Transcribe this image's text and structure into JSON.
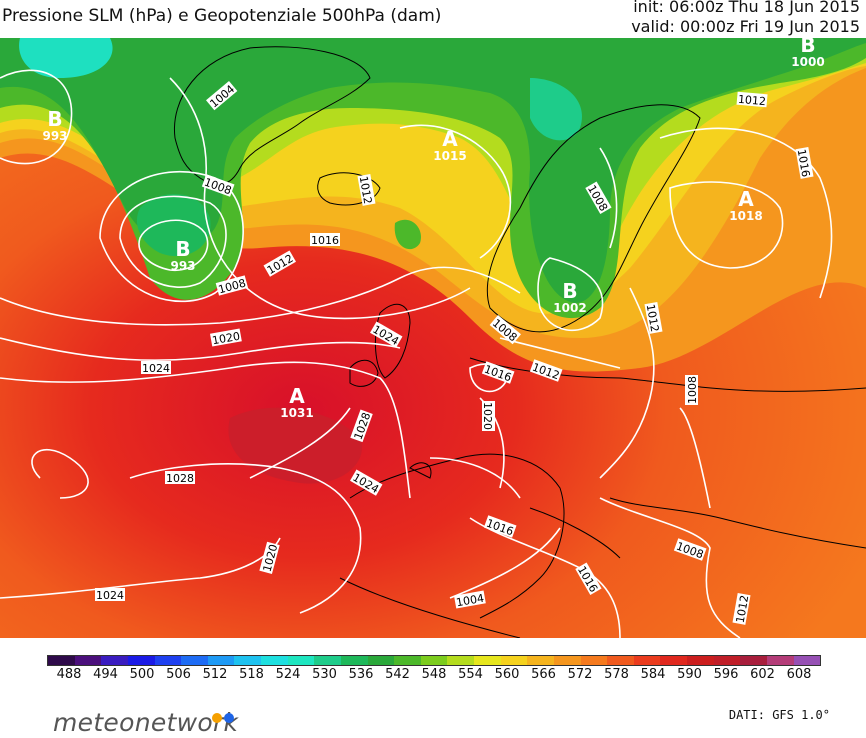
{
  "header": {
    "title": "Pressione SLM (hPa) e Geopotenziale 500hPa (dam)",
    "init": "init: 06:00z Thu 18 Jun 2015",
    "valid": "valid: 00:00z Fri 19 Jun 2015"
  },
  "centers": [
    {
      "letter": "B",
      "value": "993",
      "lon_lat": [
        -40,
        59
      ]
    },
    {
      "letter": "B",
      "value": "993",
      "lon_lat": [
        -30,
        57
      ]
    },
    {
      "letter": "A",
      "value": "1015",
      "lon_lat": [
        -5,
        63
      ]
    },
    {
      "letter": "B",
      "value": "1002",
      "lon_lat": [
        19,
        60
      ]
    },
    {
      "letter": "A",
      "value": "1018",
      "lon_lat": [
        38,
        60
      ]
    },
    {
      "letter": "A",
      "value": "1031",
      "lon_lat": [
        -27,
        41
      ]
    },
    {
      "letter": "B",
      "value": "1000",
      "lon_lat": [
        45,
        73
      ]
    }
  ],
  "isobar_labels": [
    "1004",
    "1008",
    "1008",
    "1012",
    "1016",
    "1012",
    "1020",
    "1024",
    "1024",
    "1028",
    "1028",
    "1024",
    "1020",
    "1024",
    "1016",
    "1012",
    "1020",
    "1008",
    "1012",
    "1008",
    "1012",
    "1016",
    "1016",
    "1008",
    "1004",
    "1016",
    "1012",
    "1008"
  ],
  "colorbar": {
    "ticks": [
      "488",
      "494",
      "500",
      "506",
      "512",
      "518",
      "524",
      "530",
      "536",
      "542",
      "548",
      "554",
      "560",
      "566",
      "572",
      "578",
      "584",
      "590",
      "596",
      "602",
      "608"
    ],
    "colors": [
      "#2e0a4a",
      "#4b0f7c",
      "#3a1cc0",
      "#1a1ae6",
      "#1e40f0",
      "#1e6cf5",
      "#1e9af5",
      "#1ec2f0",
      "#1ee0e0",
      "#1ee6c0",
      "#1ecc8a",
      "#1eb85a",
      "#2aa83a",
      "#4cb82a",
      "#7ccc1e",
      "#b4dc1e",
      "#e6e61e",
      "#f5d21e",
      "#f5b41e",
      "#f5961e",
      "#f57a1e",
      "#f05a1e",
      "#eb3c1e",
      "#e0281e",
      "#cc1e1e",
      "#c01e28",
      "#a81e3c",
      "#b43c78",
      "#9650b4"
    ]
  },
  "brand": {
    "name": "meteonetwork",
    "dot_colors": [
      "#f5a000",
      "#1e64e6"
    ]
  },
  "source": "DATI: GFS 1.0°"
}
